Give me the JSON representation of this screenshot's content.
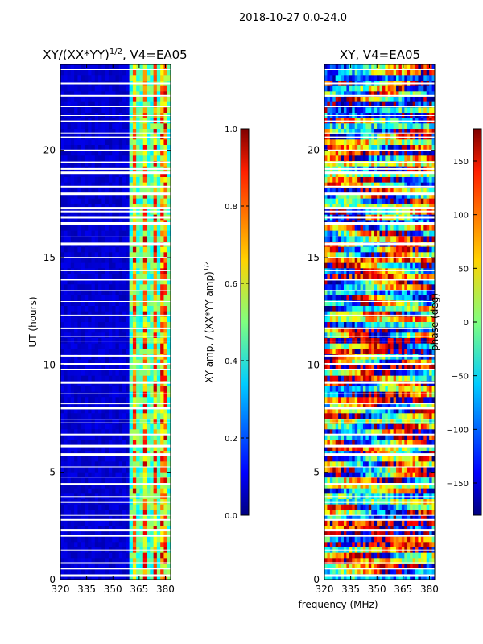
{
  "suptitle": "2018-10-27 0.0-24.0",
  "colors": {
    "jet": [
      "#00007f",
      "#0000ff",
      "#007fff",
      "#00ffff",
      "#7fff7f",
      "#ffff00",
      "#ff7f00",
      "#ff0000",
      "#7f0000"
    ],
    "gap": "#ffffff"
  },
  "chart_data": [
    {
      "type": "heatmap",
      "title_main": "XY/(XX*YY)",
      "title_sup": "1/2",
      "title_tail": ", V4=EA05",
      "xlabel": "",
      "ylabel": "UT (hours)",
      "xlim": [
        320,
        383
      ],
      "ylim": [
        0,
        24
      ],
      "xticks": [
        "320",
        "335",
        "350",
        "365",
        "380"
      ],
      "yticks": [
        "0",
        "5",
        "10",
        "15",
        "20"
      ],
      "clim": [
        0.0,
        1.0
      ],
      "colorbar_ticks": [
        "0.0",
        "0.2",
        "0.4",
        "0.6",
        "0.8",
        "1.0"
      ],
      "colorbar_label": "XY amp. / (XX*YY amp)",
      "colorbar_label_sup": "1/2",
      "signal_band_mhz": [
        360,
        383
      ],
      "bright_channels_mhz": [
        362.5,
        368,
        374,
        379
      ]
    },
    {
      "type": "heatmap",
      "title": "XY, V4=EA05",
      "xlabel": "frequency (MHz)",
      "ylabel": "",
      "xlim": [
        320,
        383
      ],
      "ylim": [
        0,
        24
      ],
      "xticks": [
        "320",
        "335",
        "350",
        "365",
        "380"
      ],
      "yticks": [
        "0",
        "5",
        "10",
        "15",
        "20"
      ],
      "clim": [
        -180,
        180
      ],
      "colorbar_ticks": [
        "−150",
        "−100",
        "−50",
        "0",
        "50",
        "100",
        "150"
      ],
      "colorbar_label": "phase (deg)"
    }
  ]
}
